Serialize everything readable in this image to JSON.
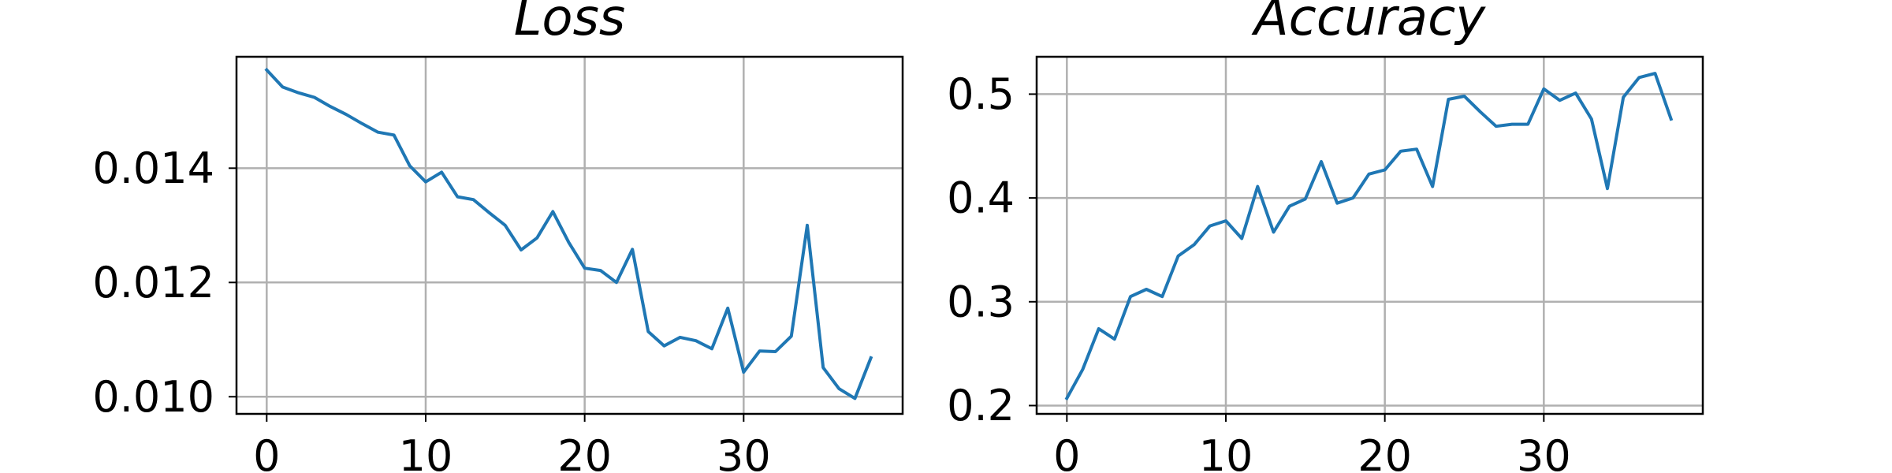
{
  "chart_data": [
    {
      "type": "line",
      "title": "Loss",
      "xlabel": "",
      "ylabel": "",
      "xlim": [
        -1.9,
        40.0
      ],
      "ylim": [
        0.0097,
        0.01595
      ],
      "xticks": [
        0,
        10,
        20,
        30
      ],
      "xtick_labels": [
        "0",
        "10",
        "20",
        "30"
      ],
      "yticks": [
        0.01,
        0.012,
        0.014
      ],
      "ytick_labels": [
        "0.010",
        "0.012",
        "0.014"
      ],
      "grid": true,
      "color": "#1f77b4",
      "series": [
        {
          "x": [
            0,
            1,
            2,
            3,
            4,
            5,
            6,
            7,
            8,
            9,
            10,
            11,
            12,
            13,
            14,
            15,
            16,
            17,
            18,
            19,
            20,
            21,
            22,
            23,
            24,
            25,
            26,
            27,
            28,
            29,
            30,
            31,
            32,
            33,
            34,
            35,
            36,
            37,
            38
          ],
          "values": [
            0.01572,
            0.01542,
            0.01532,
            0.01524,
            0.01508,
            0.01494,
            0.01478,
            0.01463,
            0.01458,
            0.01404,
            0.01376,
            0.01393,
            0.0135,
            0.01345,
            0.01322,
            0.013,
            0.01257,
            0.01278,
            0.01324,
            0.0127,
            0.01225,
            0.01221,
            0.012,
            0.01258,
            0.01114,
            0.01089,
            0.01104,
            0.01098,
            0.01084,
            0.01155,
            0.01043,
            0.0108,
            0.01079,
            0.01106,
            0.013,
            0.01051,
            0.01014,
            0.00997,
            0.01068
          ]
        }
      ]
    },
    {
      "type": "line",
      "title": "Accuracy",
      "xlabel": "",
      "ylabel": "",
      "xlim": [
        -1.9,
        40.0
      ],
      "ylim": [
        0.192,
        0.536
      ],
      "xticks": [
        0,
        10,
        20,
        30
      ],
      "xtick_labels": [
        "0",
        "10",
        "20",
        "30"
      ],
      "yticks": [
        0.2,
        0.3,
        0.4,
        0.5
      ],
      "ytick_labels": [
        "0.2",
        "0.3",
        "0.4",
        "0.5"
      ],
      "grid": true,
      "color": "#1f77b4",
      "series": [
        {
          "x": [
            0,
            1,
            2,
            3,
            4,
            5,
            6,
            7,
            8,
            9,
            10,
            11,
            12,
            13,
            14,
            15,
            16,
            17,
            18,
            19,
            20,
            21,
            22,
            23,
            24,
            25,
            26,
            27,
            28,
            29,
            30,
            31,
            32,
            33,
            34,
            35,
            36,
            37,
            38
          ],
          "values": [
            0.207,
            0.235,
            0.274,
            0.264,
            0.305,
            0.312,
            0.305,
            0.344,
            0.355,
            0.373,
            0.378,
            0.361,
            0.411,
            0.367,
            0.392,
            0.399,
            0.435,
            0.395,
            0.4,
            0.423,
            0.427,
            0.445,
            0.447,
            0.411,
            0.495,
            0.498,
            0.483,
            0.469,
            0.471,
            0.471,
            0.505,
            0.494,
            0.501,
            0.476,
            0.409,
            0.497,
            0.516,
            0.52,
            0.476
          ]
        }
      ]
    }
  ]
}
